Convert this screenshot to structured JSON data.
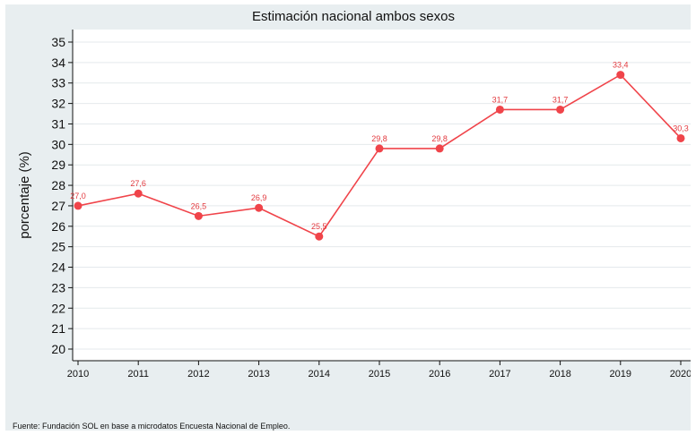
{
  "chart_data": {
    "type": "line",
    "title": "Estimación nacional ambos sexos",
    "xlabel": "",
    "ylabel": "porcentaje (%)",
    "categories": [
      "2010",
      "2011",
      "2012",
      "2013",
      "2014",
      "2015",
      "2016",
      "2017",
      "2018",
      "2019",
      "2020"
    ],
    "series": [
      {
        "values": [
          27.0,
          27.6,
          26.5,
          26.9,
          25.5,
          29.8,
          29.8,
          31.7,
          31.7,
          33.4,
          30.3
        ],
        "data_labels": [
          "27,0",
          "27,6",
          "26,5",
          "26,9",
          "25,5",
          "29,8",
          "29,8",
          "31,7",
          "31,7",
          "33,4",
          "30,3"
        ],
        "color": "#f0444a"
      }
    ],
    "ylim": [
      20,
      35
    ],
    "yticks": [
      "20",
      "21",
      "22",
      "23",
      "24",
      "25",
      "26",
      "27",
      "28",
      "29",
      "30",
      "31",
      "32",
      "33",
      "34",
      "35"
    ],
    "grid": true,
    "legend": "none"
  },
  "colors": {
    "series": "#f0444a",
    "label": "#e23a3f",
    "plot_background": "#ffffff",
    "figure_background": "#e8eef0",
    "grid": "#e4e9ec"
  },
  "footer": {
    "source": "Fuente: Fundación SOL en base a microdatos Encuesta Nacional de Empleo."
  }
}
